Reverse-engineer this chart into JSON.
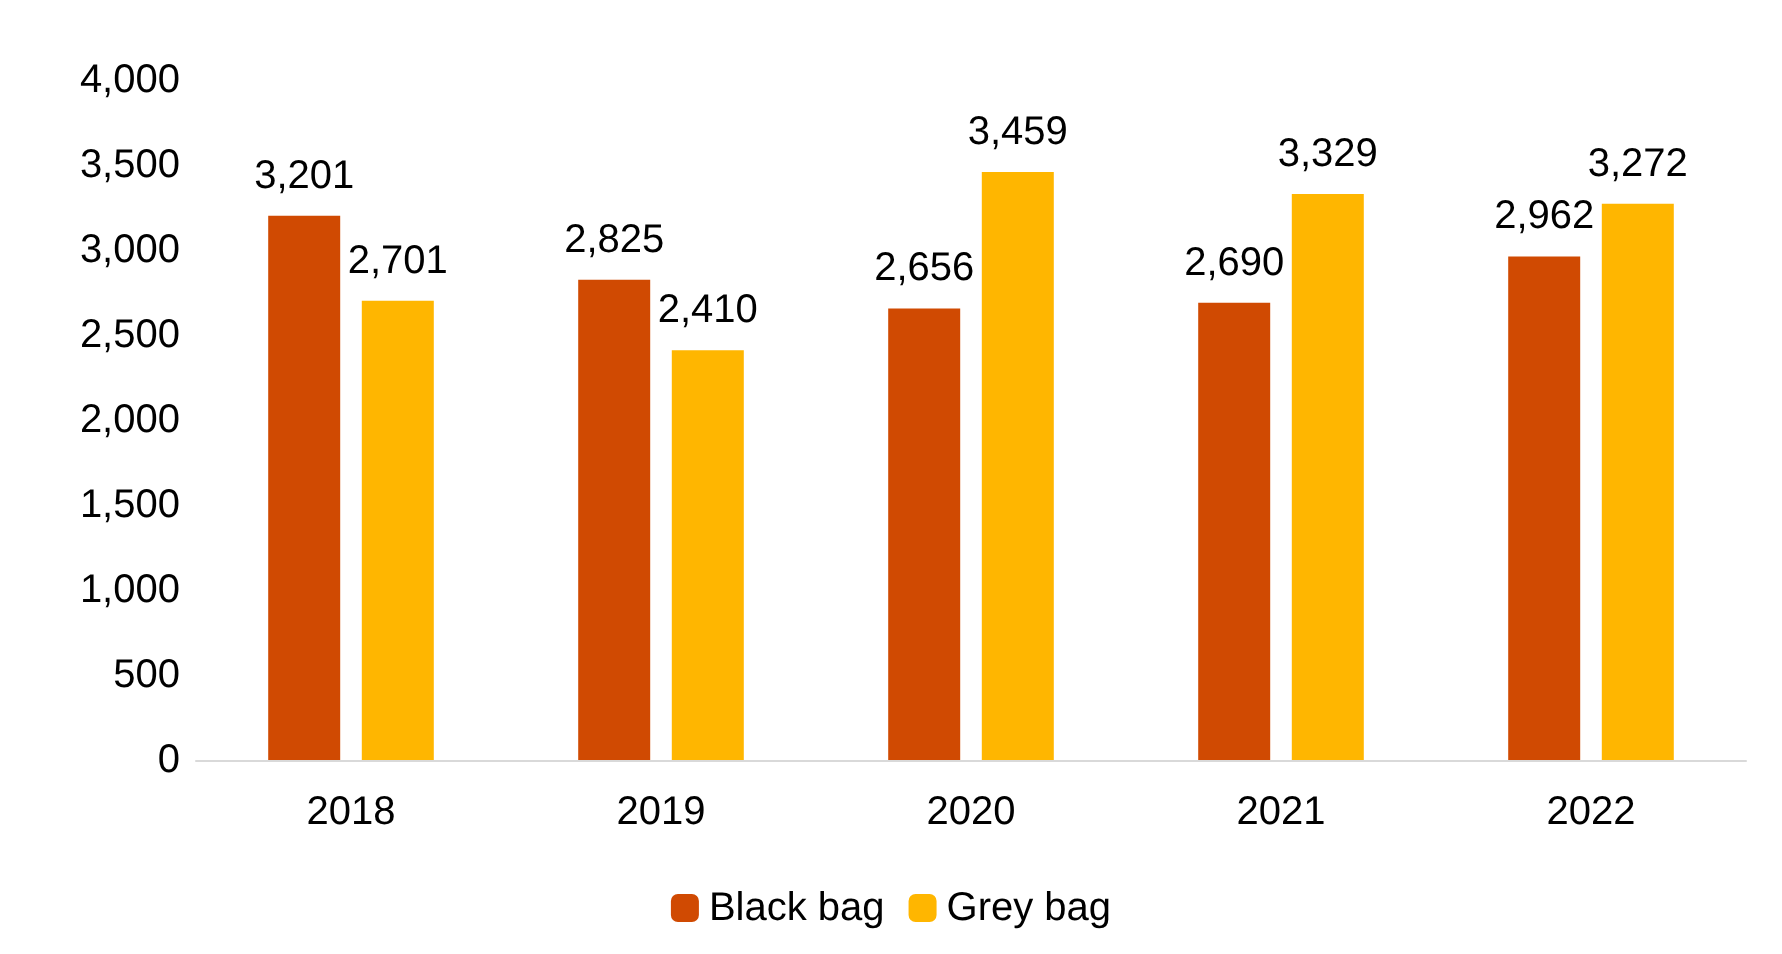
{
  "chart_data": {
    "type": "bar",
    "categories": [
      "2018",
      "2019",
      "2020",
      "2021",
      "2022"
    ],
    "series": [
      {
        "name": "Black bag",
        "color": "#d04a02",
        "values": [
          3201,
          2825,
          2656,
          2690,
          2962
        ],
        "value_labels": [
          "3,201",
          "2,825",
          "2,656",
          "2,690",
          "2,962"
        ]
      },
      {
        "name": "Grey bag",
        "color": "#ffb600",
        "values": [
          2701,
          2410,
          3459,
          3329,
          3272
        ],
        "value_labels": [
          "2,701",
          "2,410",
          "3,459",
          "3,329",
          "3,272"
        ]
      }
    ],
    "ylim": [
      0,
      4000
    ],
    "yticks": [
      0,
      500,
      {
        "value": 1000,
        "label": "1,000"
      },
      {
        "value": 1500,
        "label": "1,500"
      },
      {
        "value": 2000,
        "label": "2,000"
      },
      {
        "value": 2500,
        "label": "2,500"
      },
      {
        "value": 3000,
        "label": "3,000"
      },
      {
        "value": 3500,
        "label": "3,500"
      },
      {
        "value": 4000,
        "label": "4,000"
      }
    ],
    "grid": false,
    "legend": "bottom"
  }
}
